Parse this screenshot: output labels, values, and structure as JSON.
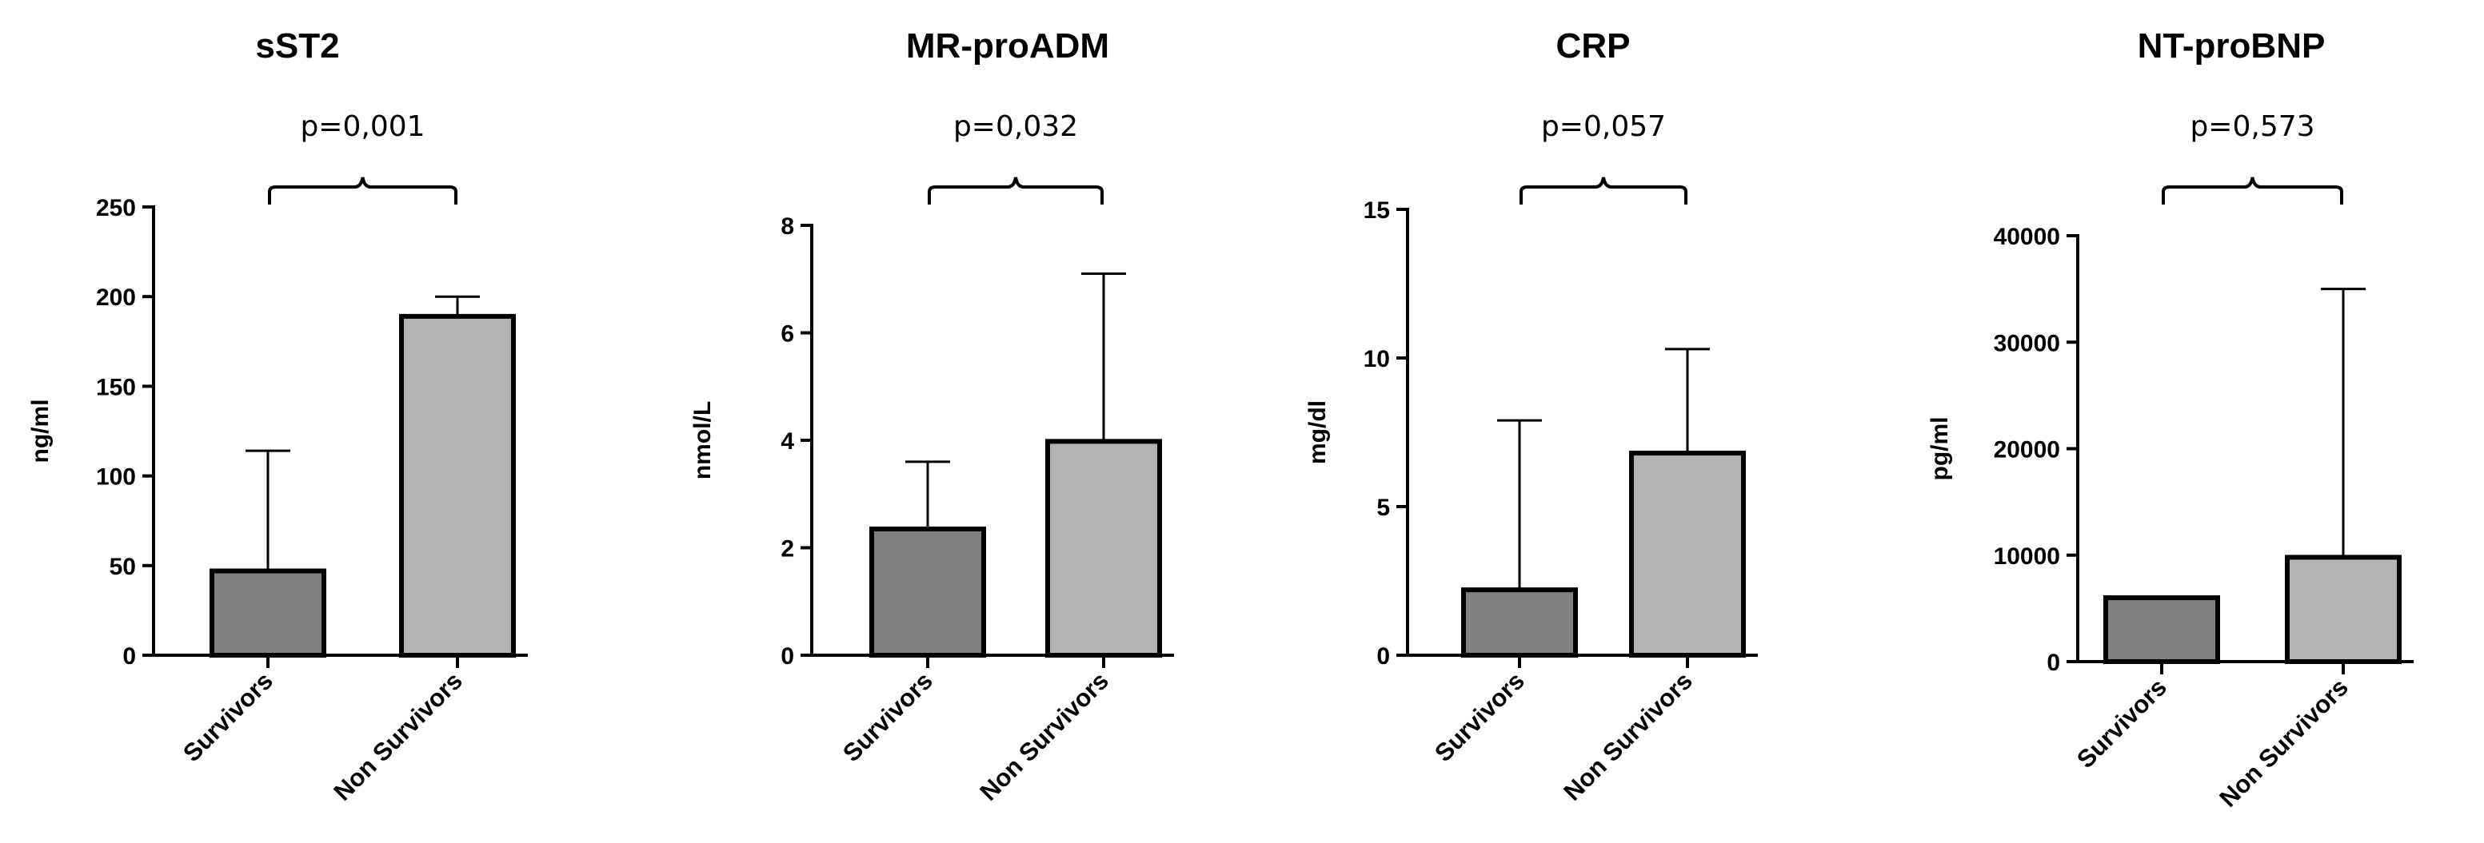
{
  "chart_data": [
    {
      "type": "bar",
      "title": "sST2",
      "ylabel": "ng/ml",
      "xlabel": "",
      "categories": [
        "Survivors",
        "Non Survivors"
      ],
      "values": [
        47,
        189
      ],
      "error_upper": [
        114,
        200
      ],
      "ylim": [
        0,
        250
      ],
      "yticks": [
        0,
        50,
        100,
        150,
        200,
        250
      ],
      "ytick_labels": [
        "0",
        "50",
        "100",
        "150",
        "200",
        "250"
      ],
      "p_value": "p=0,001",
      "colors": [
        "#808080",
        "#b3b3b3"
      ]
    },
    {
      "type": "bar",
      "title": "MR-proADM",
      "ylabel": "nmol/L",
      "xlabel": "",
      "categories": [
        "Survivors",
        "Non Survivors"
      ],
      "values": [
        2.35,
        3.98
      ],
      "error_upper": [
        3.6,
        7.1
      ],
      "ylim": [
        0,
        8
      ],
      "yticks": [
        0,
        2,
        4,
        6,
        8
      ],
      "ytick_labels": [
        "0",
        "2",
        "4",
        "6",
        "8"
      ],
      "p_value": "p=0,032",
      "colors": [
        "#808080",
        "#b3b3b3"
      ]
    },
    {
      "type": "bar",
      "title": "CRP",
      "ylabel": "mg/dl",
      "xlabel": "",
      "categories": [
        "Survivors",
        "Non Survivors"
      ],
      "values": [
        2.2,
        6.8
      ],
      "error_upper": [
        7.9,
        10.3
      ],
      "ylim": [
        0,
        15
      ],
      "yticks": [
        0,
        5,
        10,
        15
      ],
      "ytick_labels": [
        "0",
        "5",
        "10",
        "15"
      ],
      "p_value": "p=0,057",
      "colors": [
        "#808080",
        "#b3b3b3"
      ]
    },
    {
      "type": "bar",
      "title": "NT-proBNP",
      "ylabel": "pg/ml",
      "xlabel": "",
      "categories": [
        "Survivors",
        "Non Survivors"
      ],
      "values": [
        6000,
        9800
      ],
      "error_upper": [
        6000,
        35000
      ],
      "ylim": [
        0,
        40000
      ],
      "yticks": [
        0,
        10000,
        20000,
        30000,
        40000
      ],
      "ytick_labels": [
        "0",
        "10000",
        "20000",
        "30000",
        "40000"
      ],
      "p_value": "p=0,573",
      "colors": [
        "#808080",
        "#b3b3b3"
      ]
    }
  ]
}
